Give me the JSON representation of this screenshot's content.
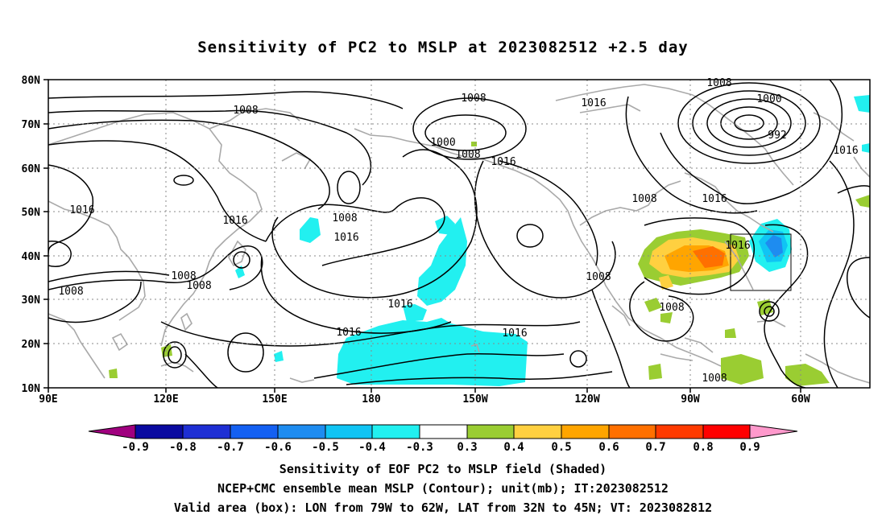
{
  "title": "Sensitivity of PC2 to MSLP at 2023082512 +2.5 day",
  "lat_labels": [
    "80N",
    "70N",
    "60N",
    "50N",
    "40N",
    "30N",
    "20N",
    "10N"
  ],
  "lon_labels": [
    "90E",
    "120E",
    "150E",
    "180",
    "150W",
    "120W",
    "90W",
    "60W"
  ],
  "contour_labels": [
    "1008",
    "1008",
    "1016",
    "1000",
    "1008",
    "1016",
    "1008",
    "1000",
    "992",
    "1016",
    "1016",
    "1016",
    "1008",
    "1016",
    "1008",
    "1016",
    "1008",
    "1008",
    "1016",
    "1016",
    "1016",
    "1008",
    "1008",
    "1016",
    "1008",
    "1008"
  ],
  "colorbar": {
    "labels": [
      "-0.9",
      "-0.8",
      "-0.7",
      "-0.6",
      "-0.5",
      "-0.4",
      "-0.3",
      "0.3",
      "0.4",
      "0.5",
      "0.6",
      "0.7",
      "0.8",
      "0.9"
    ],
    "colors": [
      "#a0007f",
      "#0a0aa0",
      "#1e2fd4",
      "#1460f2",
      "#1e8cf0",
      "#10c4f4",
      "#22f0f0",
      "#ffffff",
      "#9acd32",
      "#ffd040",
      "#ffa500",
      "#ff7000",
      "#ff3a00",
      "#ff0000",
      "#ff99cc"
    ]
  },
  "captions": [
    "Sensitivity of EOF PC2 to MSLP field (Shaded)",
    "NCEP+CMC ensemble mean MSLP (Contour); unit(mb); IT:2023082512",
    "Valid area (box): LON from 79W to 62W, LAT from 32N to 45N; VT: 2023082812"
  ]
}
